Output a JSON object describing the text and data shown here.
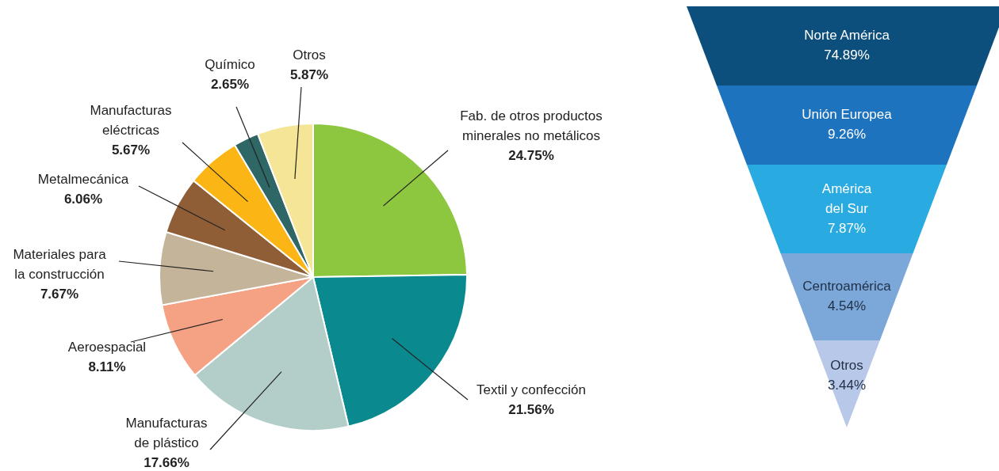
{
  "chart_data": [
    {
      "type": "pie",
      "categories": [
        "Fab. de otros productos\nminerales no metálicos",
        "Textil y confección",
        "Manufacturas\nde plástico",
        "Aeroespacial",
        "Materiales para\nla construcción",
        "Metalmecánica",
        "Manufacturas\neléctricas",
        "Químico",
        "Otros"
      ],
      "values": [
        24.75,
        21.56,
        17.66,
        8.11,
        7.67,
        6.06,
        5.67,
        2.65,
        5.87
      ],
      "value_labels": [
        "24.75%",
        "21.56%",
        "17.66%",
        "8.11%",
        "7.67%",
        "6.06%",
        "5.67%",
        "2.65%",
        "5.87%"
      ],
      "colors": [
        "#8dc63f",
        "#0a8a8f",
        "#b3cdc9",
        "#f5a183",
        "#c4b59a",
        "#8f5e36",
        "#fbb616",
        "#2f6666",
        "#f5e596"
      ],
      "legend": false
    },
    {
      "type": "other",
      "categories": [
        "Norte América",
        "Unión Europea",
        "América\ndel Sur",
        "Centroamérica",
        "Otros"
      ],
      "values": [
        74.89,
        9.26,
        7.87,
        4.54,
        3.44
      ],
      "value_labels": [
        "74.89%",
        "9.26%",
        "7.87%",
        "4.54%",
        "3.44%"
      ],
      "colors": [
        "#0d4f7c",
        "#1e73be",
        "#29abe2",
        "#7ba7d9",
        "#b8c8e8"
      ],
      "legend": false
    }
  ]
}
